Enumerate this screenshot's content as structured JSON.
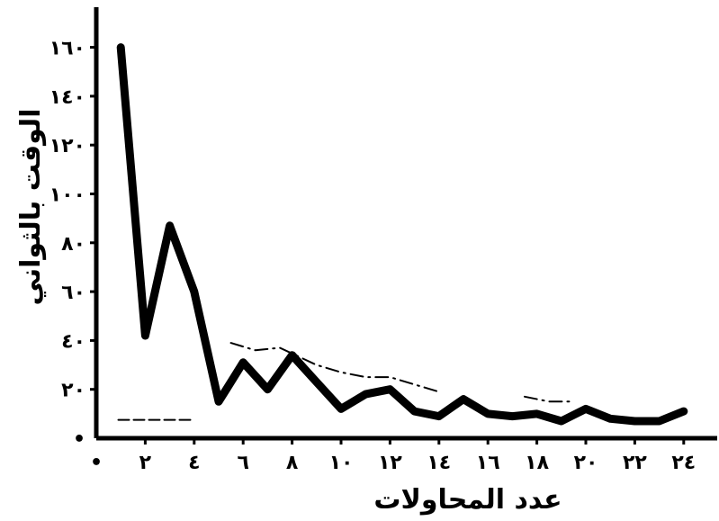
{
  "chart_data": {
    "type": "line",
    "title": "",
    "xlabel": "عدد المحاولات",
    "ylabel": "الوقت بالثواني",
    "xlim": [
      0,
      24
    ],
    "ylim": [
      0,
      160
    ],
    "x_ticks": [
      {
        "value": 0,
        "label": "•"
      },
      {
        "value": 2,
        "label": "٢"
      },
      {
        "value": 4,
        "label": "٤"
      },
      {
        "value": 6,
        "label": "٦"
      },
      {
        "value": 8,
        "label": "٨"
      },
      {
        "value": 10,
        "label": "١٠"
      },
      {
        "value": 12,
        "label": "١٢"
      },
      {
        "value": 14,
        "label": "١٤"
      },
      {
        "value": 16,
        "label": "١٦"
      },
      {
        "value": 18,
        "label": "١٨"
      },
      {
        "value": 20,
        "label": "٢٠"
      },
      {
        "value": 22,
        "label": "٢٢"
      },
      {
        "value": 24,
        "label": "٢٤"
      }
    ],
    "y_ticks": [
      {
        "value": 0,
        "label": "•"
      },
      {
        "value": 20,
        "label": "٢٠"
      },
      {
        "value": 40,
        "label": "٤٠"
      },
      {
        "value": 60,
        "label": "٦٠"
      },
      {
        "value": 80,
        "label": "٨٠"
      },
      {
        "value": 100,
        "label": "١٠٠"
      },
      {
        "value": 120,
        "label": "١٢٠"
      },
      {
        "value": 140,
        "label": "١٤٠"
      },
      {
        "value": 160,
        "label": "١٦٠"
      }
    ],
    "grid": false,
    "legend": "none",
    "series": [
      {
        "style": "solid-thick",
        "color": "#000000",
        "x": [
          1,
          2,
          3,
          4,
          5,
          6,
          7,
          8,
          9,
          10,
          11,
          12,
          13,
          14,
          15,
          16,
          17,
          18,
          19,
          20,
          21,
          22,
          23,
          24
        ],
        "y": [
          160,
          42,
          87,
          60,
          15,
          31,
          20,
          34,
          23,
          12,
          18,
          20,
          11,
          9,
          16,
          10,
          9,
          10,
          7,
          12,
          8,
          7,
          7,
          11
        ]
      },
      {
        "style": "dash-dot",
        "color": "#000000",
        "x": [
          5.5,
          6.5,
          7.5,
          9,
          10,
          11,
          12,
          13,
          14
        ],
        "y": [
          39,
          36,
          37,
          30,
          27,
          25,
          25,
          22,
          19
        ]
      },
      {
        "style": "dash-dot",
        "color": "#000000",
        "x": [
          17.5,
          18.5,
          19.5
        ],
        "y": [
          17,
          15,
          15
        ]
      },
      {
        "style": "dashed",
        "color": "#000000",
        "x": [
          0.9,
          4
        ],
        "y": [
          7.5,
          7.5
        ]
      }
    ]
  }
}
